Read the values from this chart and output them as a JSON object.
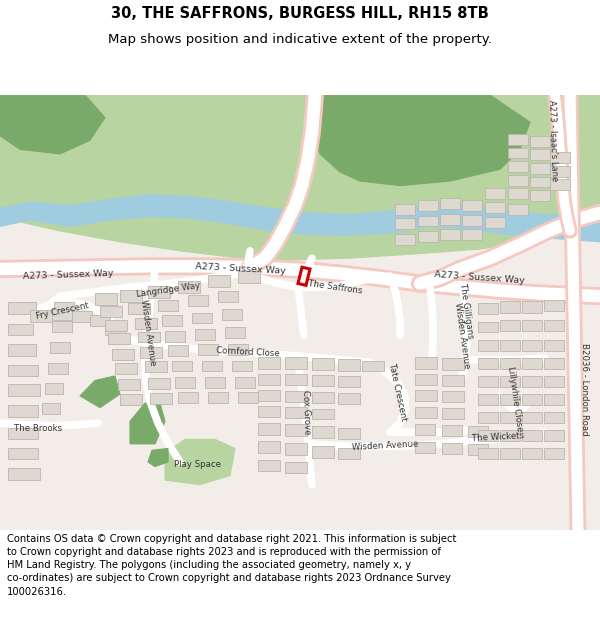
{
  "title_line1": "30, THE SAFFRONS, BURGESS HILL, RH15 8TB",
  "title_line2": "Map shows position and indicative extent of the property.",
  "footer": "Contains OS data © Crown copyright and database right 2021. This information is subject to Crown copyright and database rights 2023 and is reproduced with the permission of HM Land Registry. The polygons (including the associated geometry, namely x, y co-ordinates) are subject to Crown copyright and database rights 2023 Ordnance Survey 100026316.",
  "bg_map_color": "#f2ede8",
  "green_dark_color": "#7aaa6a",
  "green_light_color": "#b8d4a0",
  "water_color": "#a0cce0",
  "road_major_fill": "#f5c8c0",
  "road_major_edge": "#e8a898",
  "road_minor_color": "#ffffff",
  "building_color": "#ddd8d0",
  "building_outline": "#bbb5ad",
  "plot_edge": "#cc0000",
  "text_color": "#000000",
  "label_color": "#333333",
  "footer_fontsize": 7.2,
  "title1_fontsize": 10.5,
  "title2_fontsize": 9.5,
  "white": "#ffffff"
}
